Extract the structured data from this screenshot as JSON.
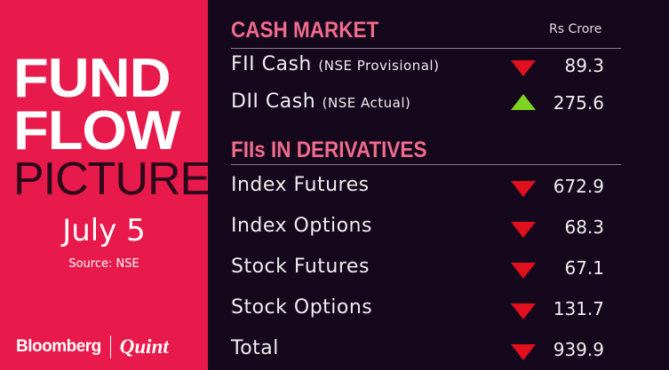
{
  "left": {
    "title1": "FUND",
    "title2": "FLOW",
    "title3": "PICTURE",
    "date": "July 5",
    "source": "Source: NSE",
    "brand1": "Bloomberg",
    "brand2": "Quint"
  },
  "cash": {
    "header": "CASH MARKET",
    "unit": "Rs Crore",
    "rows": [
      {
        "label": "FII Cash",
        "note": "(NSE Provisional)",
        "direction": "down",
        "value": "89.3"
      },
      {
        "label": "DII Cash",
        "note": "(NSE Actual)",
        "direction": "up",
        "value": "275.6"
      }
    ]
  },
  "deriv": {
    "header": "FIIs IN DERIVATIVES",
    "rows": [
      {
        "label": "Index Futures",
        "direction": "down",
        "value": "672.9"
      },
      {
        "label": "Index Options",
        "direction": "down",
        "value": "68.3"
      },
      {
        "label": "Stock Futures",
        "direction": "down",
        "value": "67.1"
      },
      {
        "label": "Stock Options",
        "direction": "down",
        "value": "131.7"
      },
      {
        "label": "Total",
        "direction": "down",
        "value": "939.9"
      }
    ]
  },
  "colors": {
    "brand": "#e8194b",
    "background": "#15071c",
    "header": "#f06b8c",
    "down": "#e0101f",
    "up": "#7ed321"
  }
}
